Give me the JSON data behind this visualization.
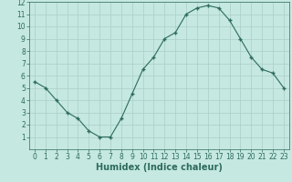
{
  "x": [
    0,
    1,
    2,
    3,
    4,
    5,
    6,
    7,
    8,
    9,
    10,
    11,
    12,
    13,
    14,
    15,
    16,
    17,
    18,
    19,
    20,
    21,
    22,
    23
  ],
  "y": [
    5.5,
    5.0,
    4.0,
    3.0,
    2.5,
    1.5,
    1.0,
    1.0,
    2.5,
    4.5,
    6.5,
    7.5,
    9.0,
    9.5,
    11.0,
    11.5,
    11.7,
    11.5,
    10.5,
    9.0,
    7.5,
    6.5,
    6.2,
    5.0
  ],
  "xlabel": "Humidex (Indice chaleur)",
  "xlim_min": -0.5,
  "xlim_max": 23.5,
  "ylim_min": 0,
  "ylim_max": 12,
  "yticks": [
    1,
    2,
    3,
    4,
    5,
    6,
    7,
    8,
    9,
    10,
    11,
    12
  ],
  "xticks": [
    0,
    1,
    2,
    3,
    4,
    5,
    6,
    7,
    8,
    9,
    10,
    11,
    12,
    13,
    14,
    15,
    16,
    17,
    18,
    19,
    20,
    21,
    22,
    23
  ],
  "line_color": "#2d6b5e",
  "marker_color": "#2d6b5e",
  "bg_color": "#c5e8e0",
  "grid_color": "#aacfc8",
  "tick_fontsize": 5.5,
  "xlabel_fontsize": 7
}
